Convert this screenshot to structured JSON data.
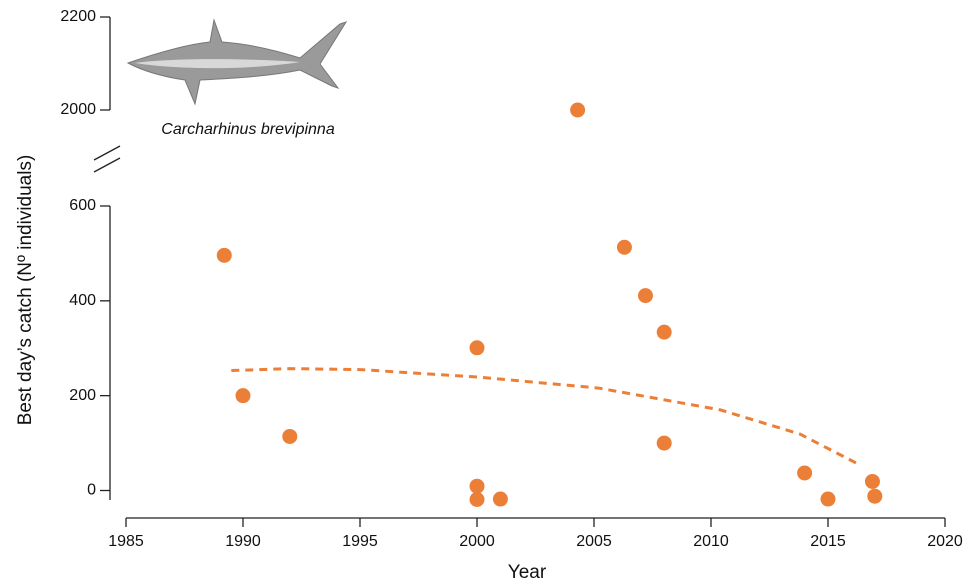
{
  "chart_data": {
    "type": "scatter",
    "xlabel": "Year",
    "ylabel": "Best day’s catch (Nº individuals)",
    "annotation": "Carcharhinus brevipinna",
    "xlim": [
      1985,
      2020
    ],
    "xticks": [
      1985,
      1990,
      1995,
      2000,
      2005,
      2010,
      2015,
      2020
    ],
    "ylim": [
      -58,
      2200
    ],
    "ybreak": [
      600,
      2000
    ],
    "yticks": [
      0,
      200,
      400,
      600,
      2000,
      2200
    ],
    "series": [
      {
        "type": "scatter",
        "color": "#ec7f37",
        "x": [
          1989.2,
          1990.0,
          1992.0,
          2000.0,
          2000.0,
          2000.0,
          2001.0,
          2004.3,
          2006.3,
          2007.2,
          2008.0,
          2008.0,
          2014.0,
          2015.0,
          2016.9,
          2017.0
        ],
        "values": [
          496,
          200,
          114,
          301,
          9,
          -19,
          -18,
          2000,
          513,
          411,
          334,
          100,
          37,
          -18,
          19,
          -12
        ]
      },
      {
        "type": "line",
        "color": "#ec7f37",
        "dashed": true,
        "x": [
          1989.5,
          1992.0,
          1995.0,
          2000.1,
          2005.2,
          2010.4,
          2013.8,
          2016.4
        ],
        "values": [
          253,
          257,
          255,
          239,
          216,
          170,
          119,
          53
        ]
      }
    ]
  }
}
